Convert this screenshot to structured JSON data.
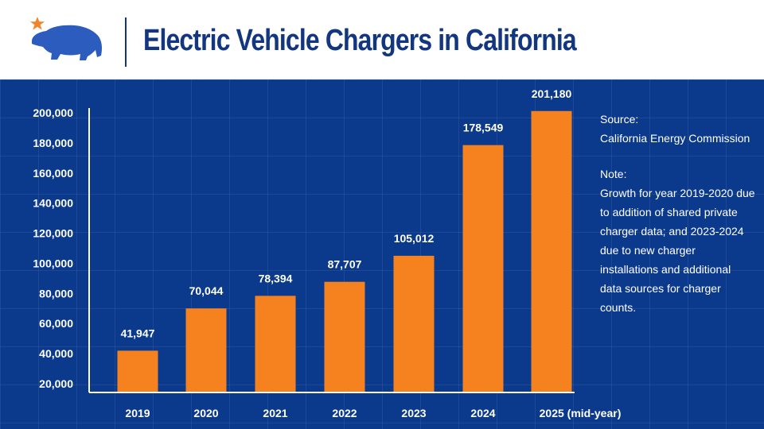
{
  "header": {
    "title": "Electric Vehicle Chargers in California",
    "logo_icon": "california-bear-star-icon",
    "colors": {
      "title": "#12367f",
      "star": "#f5822a",
      "bear": "#2c5dbe"
    }
  },
  "sidebar": {
    "source_label": "Source:",
    "source_text": "California Energy Commission",
    "note_label": "Note:",
    "note_text": "Growth for year 2019-2020 due to addition of shared private charger data; and 2023-2024 due to new charger installations and additional data sources for charger counts."
  },
  "chart_data": {
    "type": "bar",
    "title": "Electric Vehicle Chargers in California",
    "xlabel": "",
    "ylabel": "",
    "categories": [
      "2019",
      "2020",
      "2021",
      "2022",
      "2023",
      "2024",
      "2025 (mid-year)"
    ],
    "values": [
      41947,
      70044,
      78394,
      87707,
      105012,
      178549,
      201180
    ],
    "value_labels": [
      "41,947",
      "70,044",
      "78,394",
      "87,707",
      "105,012",
      "178,549",
      "201,180"
    ],
    "yticks": [
      20000,
      40000,
      60000,
      80000,
      100000,
      120000,
      140000,
      160000,
      180000,
      200000
    ],
    "ytick_labels": [
      "20,000",
      "40,000",
      "60,000",
      "80,000",
      "100,000",
      "120,000",
      "140,000",
      "160,000",
      "180,000",
      "200,000"
    ],
    "ylim": [
      20000,
      200000
    ],
    "grid": true,
    "legend": "none",
    "colors": {
      "bar": "#f5821f",
      "background": "#0b3a8c",
      "text": "#ffffff",
      "axis": "#ffffff"
    }
  }
}
